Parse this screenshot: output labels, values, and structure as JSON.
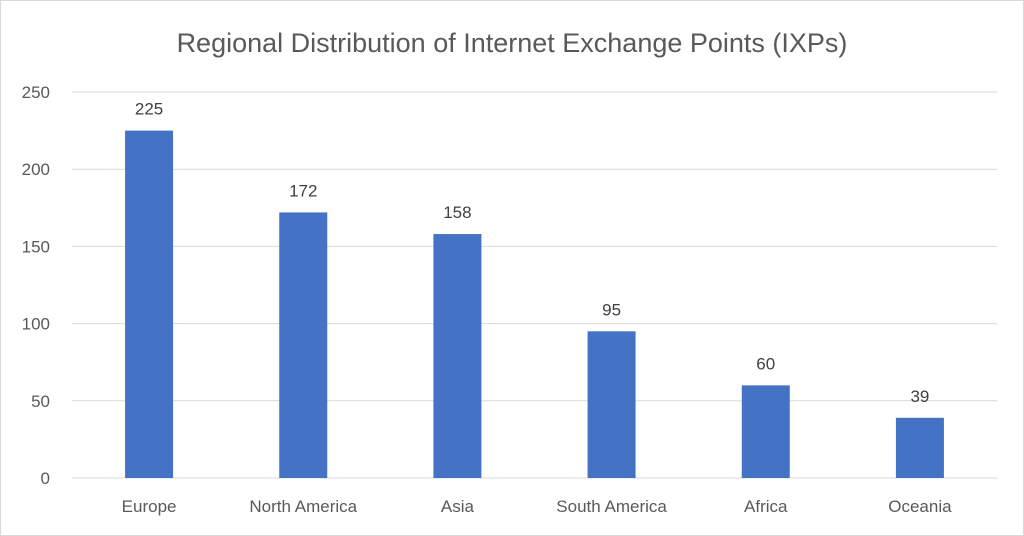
{
  "chart_data": {
    "type": "bar",
    "title": "Regional Distribution of Internet Exchange Points (IXPs)",
    "xlabel": "",
    "ylabel": "",
    "categories": [
      "Europe",
      "North America",
      "Asia",
      "South America",
      "Africa",
      "Oceania"
    ],
    "values": [
      225,
      172,
      158,
      95,
      60,
      39
    ],
    "ylim": [
      0,
      250
    ],
    "yticks": [
      0,
      50,
      100,
      150,
      200,
      250
    ],
    "grid": true,
    "legend": "none",
    "bar_color": "#4472c4"
  }
}
